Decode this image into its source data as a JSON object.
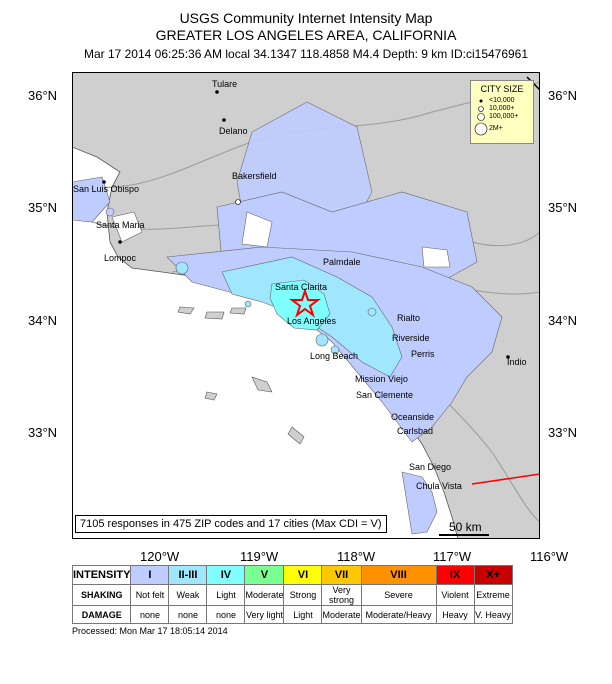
{
  "header": {
    "title": "USGS Community Internet Intensity Map",
    "region": "GREATER LOS ANGELES AREA, CALIFORNIA",
    "event_line": "Mar 17 2014 06:25:36 AM local 34.1347 118.4858 M4.4 Depth: 9 km ID:ci15476961"
  },
  "axes": {
    "lat_labels": [
      "36°N",
      "35°N",
      "34°N",
      "33°N"
    ],
    "lon_labels": [
      "120°W",
      "119°W",
      "118°W",
      "117°W",
      "116°W"
    ]
  },
  "cities": [
    "Tulare",
    "Delano",
    "Bakersfield",
    "San Luis Obispo",
    "Santa Maria",
    "Lompoc",
    "Palmdale",
    "Santa Clarita",
    "Los Angeles",
    "Long Beach",
    "Rialto",
    "Riverside",
    "Perris",
    "Mission Viejo",
    "San Clemente",
    "Oceanside",
    "Carlsbad",
    "San Diego",
    "Chula Vista",
    "Indio"
  ],
  "city_size_legend": {
    "title": "CITY SIZE",
    "items": [
      "<10,000",
      "10,000+",
      "100,000+",
      "2M+"
    ]
  },
  "responses_note": "7105 responses in 475 ZIP codes and 17 cities (Max CDI = V)",
  "scale_bar": "50 km",
  "intensity_legend": {
    "row_headers": [
      "INTENSITY",
      "SHAKING",
      "DAMAGE"
    ],
    "intensity": [
      "I",
      "II-III",
      "IV",
      "V",
      "VI",
      "VII",
      "VIII",
      "IX",
      "X+"
    ],
    "shaking": [
      "Not felt",
      "Weak",
      "Light",
      "Moderate",
      "Strong",
      "Very strong",
      "Severe",
      "Violent",
      "Extreme"
    ],
    "damage": [
      "none",
      "none",
      "none",
      "Very light",
      "Light",
      "Moderate",
      "Moderate/Heavy",
      "Heavy",
      "V. Heavy"
    ],
    "colors": [
      "#ffffff",
      "#bfccff",
      "#a0e6ff",
      "#80ffff",
      "#7aff93",
      "#ffff00",
      "#ffc800",
      "#ff9100",
      "#ff0000",
      "#c80000"
    ]
  },
  "footer": "Processed: Mon Mar 17 18:05:14 2014"
}
